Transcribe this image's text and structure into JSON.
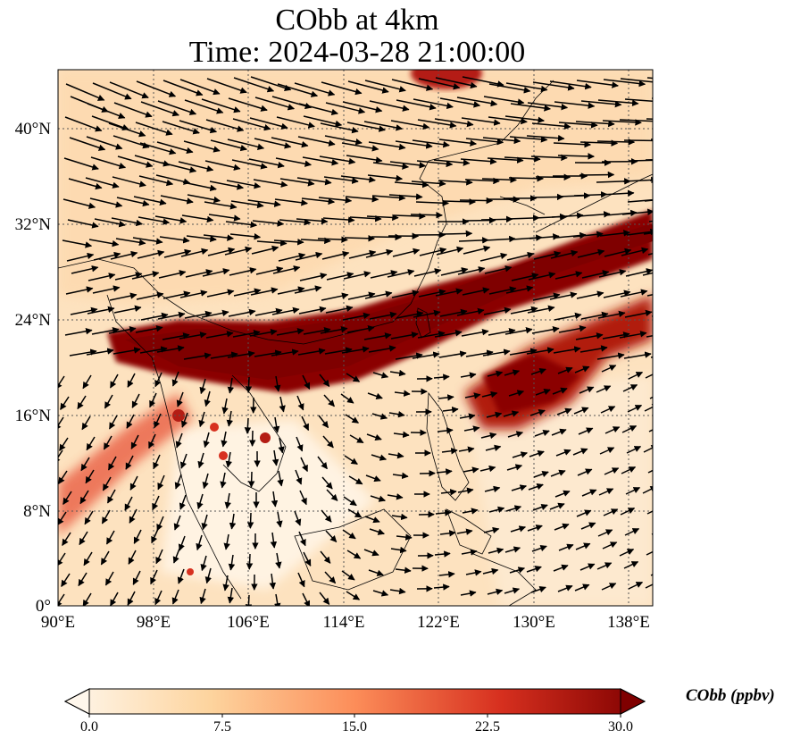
{
  "title": {
    "line1": "CObb at 4km",
    "line2": "Time: 2024-03-28 21:00:00"
  },
  "map": {
    "lon_range": [
      90,
      140
    ],
    "lat_range": [
      0,
      44
    ],
    "x_ticks": [
      "90°E",
      "98°E",
      "106°E",
      "114°E",
      "122°E",
      "130°E",
      "138°E"
    ],
    "y_ticks": [
      "0°",
      "8°N",
      "16°N",
      "24°N",
      "32°N",
      "40°N"
    ],
    "gridlines": "dotted",
    "field": "CObb",
    "vectors": "wind arrows"
  },
  "colorbar": {
    "label": "CObb (ppbv)",
    "ticks": [
      "0.0",
      "7.5",
      "15.0",
      "22.5",
      "30.0"
    ],
    "range": [
      0,
      30
    ],
    "colormap": "OrRd",
    "colors": [
      "#fff7ec",
      "#fdd49e",
      "#fc8d59",
      "#d7301f",
      "#7f0000"
    ]
  }
}
